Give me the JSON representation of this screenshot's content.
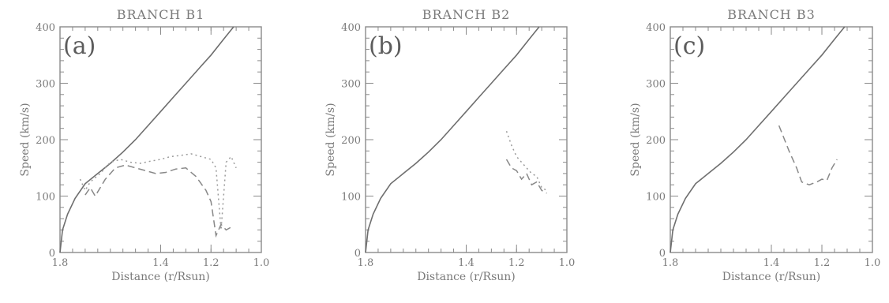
{
  "chart_data": [
    {
      "type": "line",
      "title": "BRANCH B1",
      "panel_label": "(a)",
      "xlabel": "Distance (r/Rsun)",
      "ylabel": "Speed (km/s)",
      "xlim": [
        1.8,
        1.0
      ],
      "ylim": [
        0,
        400
      ],
      "xticks": [
        1.8,
        1.4,
        1.2,
        1.0
      ],
      "xtick_labels": [
        "1.8",
        "1.4",
        "1.2",
        "1.0"
      ],
      "yticks": [
        0,
        100,
        200,
        300,
        400
      ],
      "ytick_labels": [
        "0",
        "100",
        "200",
        "300",
        "400"
      ],
      "series": [
        {
          "style": "solid",
          "x": [
            1.8,
            1.79,
            1.77,
            1.74,
            1.7,
            1.65,
            1.6,
            1.55,
            1.5,
            1.45,
            1.4,
            1.35,
            1.3,
            1.25,
            1.2,
            1.15,
            1.11
          ],
          "y": [
            0,
            40,
            68,
            96,
            122,
            140,
            158,
            178,
            200,
            225,
            250,
            275,
            300,
            325,
            350,
            378,
            400
          ]
        },
        {
          "style": "dashed",
          "x": [
            1.7,
            1.68,
            1.66,
            1.62,
            1.58,
            1.54,
            1.5,
            1.46,
            1.42,
            1.38,
            1.34,
            1.3,
            1.26,
            1.22,
            1.2,
            1.18,
            1.16,
            1.14,
            1.12
          ],
          "y": [
            102,
            115,
            100,
            130,
            150,
            155,
            150,
            145,
            140,
            142,
            148,
            150,
            135,
            110,
            90,
            30,
            50,
            40,
            45
          ]
        },
        {
          "style": "dotted",
          "x": [
            1.72,
            1.7,
            1.68,
            1.64,
            1.6,
            1.56,
            1.52,
            1.48,
            1.44,
            1.4,
            1.36,
            1.32,
            1.28,
            1.24,
            1.2,
            1.18,
            1.16,
            1.14,
            1.12,
            1.1
          ],
          "y": [
            130,
            110,
            125,
            140,
            160,
            165,
            160,
            158,
            162,
            165,
            170,
            172,
            175,
            170,
            165,
            150,
            40,
            160,
            170,
            150
          ]
        }
      ]
    },
    {
      "type": "line",
      "title": "BRANCH B2",
      "panel_label": "(b)",
      "xlabel": "Distance (r/Rsun)",
      "ylabel": "Speed (km/s)",
      "xlim": [
        1.8,
        1.0
      ],
      "ylim": [
        0,
        400
      ],
      "xticks": [
        1.8,
        1.4,
        1.2,
        1.0
      ],
      "xtick_labels": [
        "1.8",
        "1.4",
        "1.2",
        "1.0"
      ],
      "yticks": [
        0,
        100,
        200,
        300,
        400
      ],
      "ytick_labels": [
        "0",
        "100",
        "200",
        "300",
        "400"
      ],
      "series": [
        {
          "style": "solid",
          "x": [
            1.8,
            1.79,
            1.77,
            1.74,
            1.7,
            1.65,
            1.6,
            1.55,
            1.5,
            1.45,
            1.4,
            1.35,
            1.3,
            1.25,
            1.2,
            1.15,
            1.11
          ],
          "y": [
            0,
            40,
            68,
            96,
            122,
            140,
            158,
            178,
            200,
            225,
            250,
            275,
            300,
            325,
            350,
            378,
            400
          ]
        },
        {
          "style": "dashed",
          "x": [
            1.24,
            1.22,
            1.2,
            1.18,
            1.16,
            1.14,
            1.12,
            1.1,
            1.08
          ],
          "y": [
            165,
            150,
            145,
            130,
            140,
            120,
            125,
            110,
            105
          ]
        },
        {
          "style": "dotted",
          "x": [
            1.24,
            1.22,
            1.2,
            1.18,
            1.16,
            1.14,
            1.12,
            1.1,
            1.08
          ],
          "y": [
            215,
            190,
            170,
            160,
            150,
            140,
            135,
            115,
            110
          ]
        }
      ]
    },
    {
      "type": "line",
      "title": "BRANCH B3",
      "panel_label": "(c)",
      "xlabel": "Distance (r/Rsun)",
      "ylabel": "Speed (km/s)",
      "xlim": [
        1.8,
        1.0
      ],
      "ylim": [
        0,
        400
      ],
      "xticks": [
        1.8,
        1.4,
        1.2,
        1.0
      ],
      "xtick_labels": [
        "1.8",
        "1.4",
        "1.2",
        "1.0"
      ],
      "yticks": [
        0,
        100,
        200,
        300,
        400
      ],
      "ytick_labels": [
        "0",
        "100",
        "200",
        "300",
        "400"
      ],
      "series": [
        {
          "style": "solid",
          "x": [
            1.8,
            1.79,
            1.77,
            1.74,
            1.7,
            1.65,
            1.6,
            1.55,
            1.5,
            1.45,
            1.4,
            1.35,
            1.3,
            1.25,
            1.2,
            1.15,
            1.11
          ],
          "y": [
            0,
            40,
            68,
            96,
            122,
            140,
            158,
            178,
            200,
            225,
            250,
            275,
            300,
            325,
            350,
            378,
            400
          ]
        },
        {
          "style": "dashed",
          "x": [
            1.37,
            1.33,
            1.3,
            1.28,
            1.25,
            1.22,
            1.2,
            1.18,
            1.16,
            1.14
          ],
          "y": [
            225,
            180,
            150,
            125,
            120,
            125,
            130,
            128,
            150,
            165
          ]
        }
      ]
    }
  ]
}
